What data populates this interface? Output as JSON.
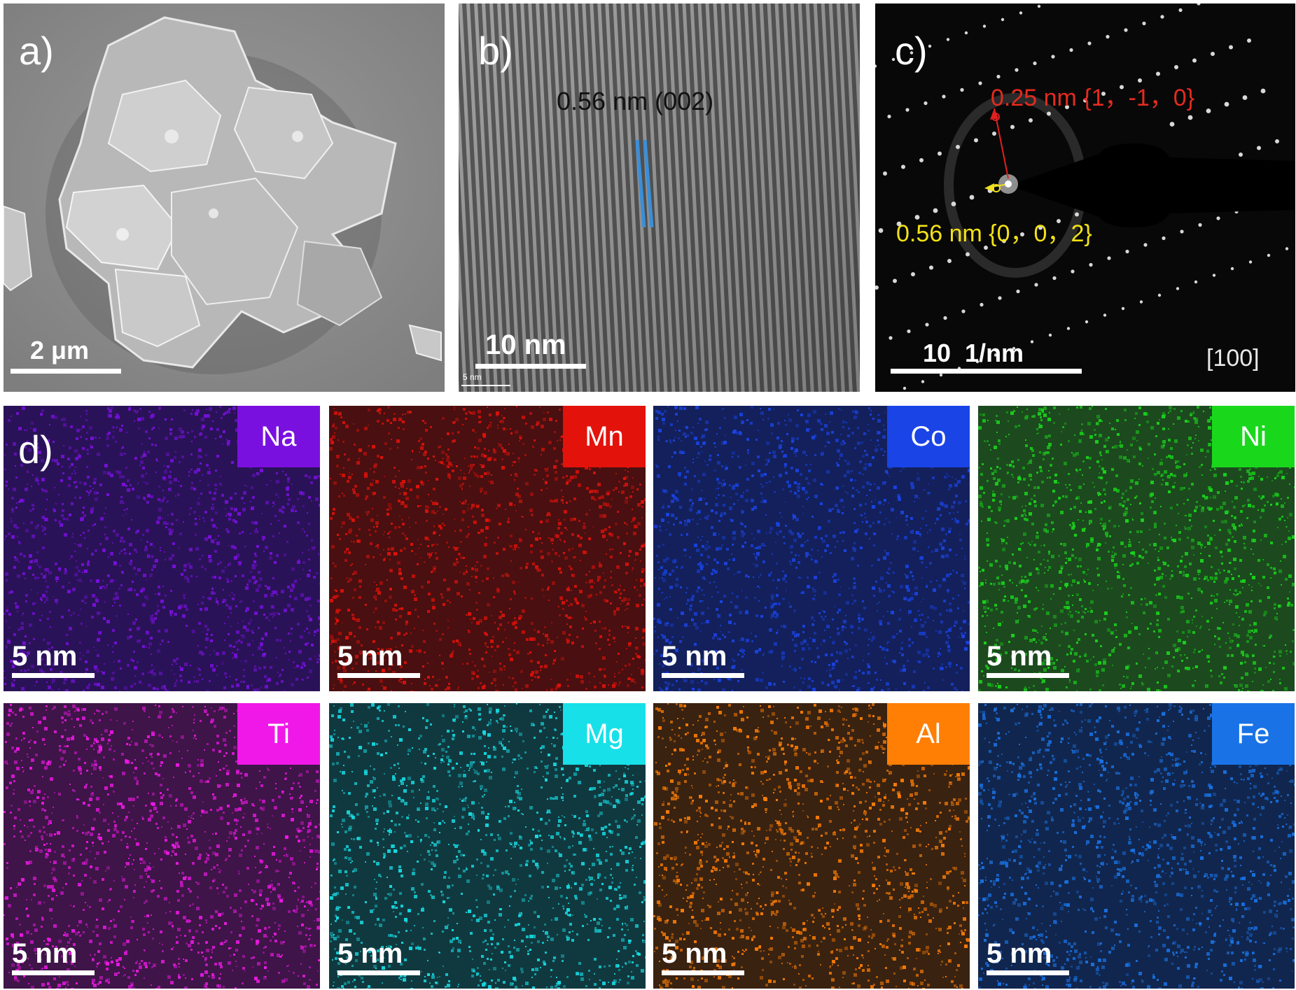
{
  "panels": {
    "a": {
      "label": "a)",
      "scale": "2 μm"
    },
    "b": {
      "label": "b)",
      "scale": "10 nm",
      "small_scale": "5 nm",
      "fringe": "0.56 nm (002)"
    },
    "c": {
      "label": "c)",
      "scale": "10  1/nm",
      "zone_axis": "[100]",
      "spot_red": "0.25 nm {1，-1，0}",
      "spot_yellow": "0.56 nm {0，0，2}"
    },
    "d": {
      "label": "d)"
    }
  },
  "maps": [
    {
      "element": "Na",
      "scale": "5 nm",
      "color": "#7a10e0",
      "bg": "#2a1258"
    },
    {
      "element": "Mn",
      "scale": "5 nm",
      "color": "#e3120b",
      "bg": "#4a0f10"
    },
    {
      "element": "Co",
      "scale": "5 nm",
      "color": "#1a44e6",
      "bg": "#13205c"
    },
    {
      "element": "Ni",
      "scale": "5 nm",
      "color": "#19d81c",
      "bg": "#1c4a1e"
    },
    {
      "element": "Ti",
      "scale": "5 nm",
      "color": "#f018e8",
      "bg": "#3f1448"
    },
    {
      "element": "Mg",
      "scale": "5 nm",
      "color": "#18e0e8",
      "bg": "#10393f"
    },
    {
      "element": "Al",
      "scale": "5 nm",
      "color": "#ff7f05",
      "bg": "#3a2210"
    },
    {
      "element": "Fe",
      "scale": "5 nm",
      "color": "#1973e6",
      "bg": "#11264e"
    }
  ]
}
